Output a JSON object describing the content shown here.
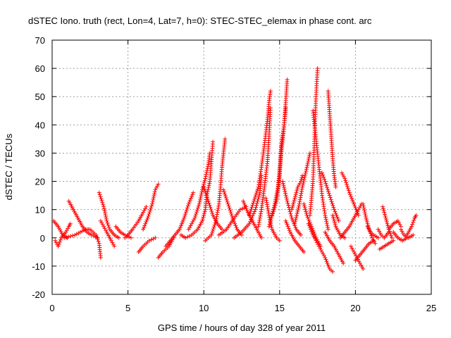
{
  "chart_data": {
    "type": "scatter",
    "title": "dSTEC Iono. truth (rect, Lon=4, Lat=7, h=0): STEC-STEC_elemax in phase cont. arc",
    "xlabel": "GPS time / hours of day 328 of year 2011",
    "ylabel": "dSTEC  / TECUs",
    "xlim": [
      0,
      25
    ],
    "ylim": [
      -20,
      70
    ],
    "xticks": [
      "0",
      "5",
      "10",
      "15",
      "20",
      "25"
    ],
    "yticks": [
      "-20",
      "-10",
      "0",
      "10",
      "20",
      "30",
      "40",
      "50",
      "60",
      "70"
    ],
    "grid": true,
    "marker": "plus",
    "color": "#ff0000",
    "arcs": [
      [
        [
          0.1,
          6
        ],
        [
          0.4,
          4
        ],
        [
          0.7,
          1
        ],
        [
          1.0,
          0
        ]
      ],
      [
        [
          0.2,
          -1
        ],
        [
          0.4,
          -3
        ],
        [
          0.6,
          0
        ],
        [
          0.9,
          2
        ],
        [
          1.1,
          4
        ],
        [
          1.2,
          5
        ]
      ],
      [
        [
          1.1,
          13
        ],
        [
          1.4,
          10
        ],
        [
          1.7,
          7
        ],
        [
          2.0,
          4
        ],
        [
          2.3,
          2
        ],
        [
          2.6,
          1
        ],
        [
          3.0,
          0
        ]
      ],
      [
        [
          0.8,
          0
        ],
        [
          1.5,
          1
        ],
        [
          2.2,
          3
        ],
        [
          2.5,
          3
        ],
        [
          2.9,
          1
        ],
        [
          3.1,
          -2
        ],
        [
          3.2,
          -7
        ]
      ],
      [
        [
          3.1,
          16
        ],
        [
          3.4,
          11
        ],
        [
          3.6,
          6
        ],
        [
          3.8,
          3
        ],
        [
          4.1,
          1
        ],
        [
          4.4,
          0
        ]
      ],
      [
        [
          3.2,
          6
        ],
        [
          3.6,
          2
        ],
        [
          3.9,
          -1
        ],
        [
          4.1,
          -3
        ]
      ],
      [
        [
          4.2,
          4
        ],
        [
          4.5,
          2
        ],
        [
          4.8,
          1
        ],
        [
          5.2,
          0
        ]
      ],
      [
        [
          4.8,
          0
        ],
        [
          5.0,
          1
        ],
        [
          5.3,
          3
        ],
        [
          5.7,
          6
        ],
        [
          6.0,
          9
        ],
        [
          6.2,
          11
        ]
      ],
      [
        [
          5.7,
          -5
        ],
        [
          6.0,
          -3
        ],
        [
          6.4,
          -1
        ],
        [
          6.8,
          0
        ]
      ],
      [
        [
          6.0,
          3
        ],
        [
          6.3,
          7
        ],
        [
          6.6,
          12
        ],
        [
          6.8,
          17
        ],
        [
          7.0,
          19
        ]
      ],
      [
        [
          7.0,
          -7
        ],
        [
          7.3,
          -5
        ],
        [
          7.7,
          -3
        ],
        [
          8.0,
          0
        ]
      ],
      [
        [
          7.5,
          -3
        ],
        [
          7.8,
          -1
        ],
        [
          8.1,
          1
        ],
        [
          8.4,
          3
        ],
        [
          8.7,
          7
        ],
        [
          9.0,
          12
        ],
        [
          9.3,
          16
        ]
      ],
      [
        [
          8.5,
          1
        ],
        [
          8.8,
          0
        ],
        [
          9.2,
          1
        ],
        [
          9.6,
          3
        ],
        [
          9.9,
          6
        ],
        [
          10.1,
          10
        ],
        [
          10.2,
          15
        ],
        [
          10.4,
          20
        ],
        [
          10.5,
          27
        ],
        [
          10.6,
          34
        ]
      ],
      [
        [
          9.0,
          3
        ],
        [
          9.4,
          7
        ],
        [
          9.7,
          12
        ],
        [
          9.9,
          17
        ],
        [
          10.1,
          21
        ],
        [
          10.3,
          26
        ],
        [
          10.4,
          30
        ]
      ],
      [
        [
          10.0,
          18
        ],
        [
          10.3,
          13
        ],
        [
          10.6,
          8
        ],
        [
          10.9,
          5
        ],
        [
          11.2,
          3
        ]
      ],
      [
        [
          10.1,
          -1
        ],
        [
          10.5,
          1
        ],
        [
          10.8,
          6
        ],
        [
          11.0,
          12
        ],
        [
          11.1,
          18
        ],
        [
          11.2,
          25
        ],
        [
          11.3,
          30
        ],
        [
          11.4,
          35
        ]
      ],
      [
        [
          11.3,
          17
        ],
        [
          11.6,
          12
        ],
        [
          11.9,
          7
        ],
        [
          12.2,
          3
        ],
        [
          12.5,
          1
        ]
      ],
      [
        [
          11.0,
          1
        ],
        [
          11.5,
          3
        ],
        [
          12.0,
          7
        ],
        [
          12.4,
          10
        ],
        [
          12.8,
          11
        ]
      ],
      [
        [
          12.0,
          0
        ],
        [
          12.5,
          2
        ],
        [
          13.0,
          5
        ],
        [
          13.4,
          10
        ],
        [
          13.7,
          16
        ],
        [
          13.8,
          22
        ]
      ],
      [
        [
          12.6,
          13
        ],
        [
          12.9,
          9
        ],
        [
          13.2,
          6
        ],
        [
          13.5,
          3
        ],
        [
          13.8,
          0
        ]
      ],
      [
        [
          13.0,
          8
        ],
        [
          13.3,
          13
        ],
        [
          13.6,
          18
        ],
        [
          13.8,
          25
        ],
        [
          14.0,
          33
        ],
        [
          14.2,
          42
        ],
        [
          14.3,
          48
        ],
        [
          14.4,
          52
        ]
      ],
      [
        [
          13.6,
          4
        ],
        [
          13.8,
          10
        ],
        [
          14.0,
          18
        ],
        [
          14.2,
          27
        ],
        [
          14.3,
          36
        ],
        [
          14.4,
          46
        ]
      ],
      [
        [
          14.1,
          14
        ],
        [
          14.3,
          8
        ],
        [
          14.5,
          3
        ],
        [
          14.8,
          0
        ],
        [
          15.0,
          -1
        ]
      ],
      [
        [
          14.5,
          8
        ],
        [
          14.8,
          13
        ],
        [
          15.0,
          22
        ],
        [
          15.1,
          32
        ],
        [
          15.3,
          40
        ],
        [
          15.4,
          48
        ],
        [
          15.5,
          56
        ]
      ],
      [
        [
          14.3,
          4
        ],
        [
          14.6,
          10
        ],
        [
          14.9,
          18
        ],
        [
          15.1,
          30
        ],
        [
          15.3,
          40
        ],
        [
          15.4,
          46
        ]
      ],
      [
        [
          15.2,
          20
        ],
        [
          15.5,
          13
        ],
        [
          15.8,
          7
        ],
        [
          16.1,
          3
        ],
        [
          16.4,
          1
        ]
      ],
      [
        [
          15.4,
          6
        ],
        [
          15.7,
          2
        ],
        [
          16.0,
          -1
        ],
        [
          16.3,
          -3
        ],
        [
          16.6,
          -5
        ]
      ],
      [
        [
          15.8,
          10
        ],
        [
          16.0,
          14
        ],
        [
          16.2,
          18
        ],
        [
          16.4,
          20
        ],
        [
          16.5,
          22
        ]
      ],
      [
        [
          16.0,
          5
        ],
        [
          16.3,
          12
        ],
        [
          16.5,
          18
        ],
        [
          16.8,
          25
        ],
        [
          17.0,
          30
        ]
      ],
      [
        [
          16.6,
          12
        ],
        [
          16.8,
          8
        ],
        [
          17.1,
          4
        ],
        [
          17.4,
          0
        ],
        [
          17.7,
          -3
        ]
      ],
      [
        [
          17.0,
          8
        ],
        [
          17.2,
          20
        ],
        [
          17.3,
          35
        ],
        [
          17.4,
          50
        ],
        [
          17.5,
          60
        ]
      ],
      [
        [
          17.2,
          45
        ],
        [
          17.4,
          35
        ],
        [
          17.6,
          25
        ],
        [
          17.8,
          15
        ],
        [
          18.0,
          8
        ],
        [
          18.2,
          3
        ]
      ],
      [
        [
          16.9,
          5
        ],
        [
          17.2,
          1
        ],
        [
          17.6,
          -3
        ],
        [
          18.0,
          -7
        ],
        [
          18.3,
          -11
        ],
        [
          18.5,
          -12
        ]
      ],
      [
        [
          17.8,
          23
        ],
        [
          18.0,
          20
        ],
        [
          18.3,
          15
        ],
        [
          18.6,
          10
        ],
        [
          18.9,
          6
        ]
      ],
      [
        [
          18.2,
          52
        ],
        [
          18.3,
          44
        ],
        [
          18.4,
          36
        ],
        [
          18.5,
          28
        ],
        [
          18.6,
          22
        ],
        [
          18.7,
          18
        ]
      ],
      [
        [
          18.0,
          2
        ],
        [
          18.3,
          -1
        ],
        [
          18.6,
          -3
        ],
        [
          18.9,
          -6
        ],
        [
          19.2,
          -9
        ]
      ],
      [
        [
          18.5,
          8
        ],
        [
          18.7,
          4
        ],
        [
          19.0,
          1
        ],
        [
          19.3,
          0
        ]
      ],
      [
        [
          19.1,
          23
        ],
        [
          19.3,
          21
        ],
        [
          19.6,
          16
        ],
        [
          19.9,
          12
        ],
        [
          20.2,
          8
        ]
      ],
      [
        [
          19.0,
          0
        ],
        [
          19.3,
          2
        ],
        [
          19.6,
          4
        ],
        [
          19.9,
          7
        ],
        [
          20.2,
          10
        ],
        [
          20.4,
          12
        ]
      ],
      [
        [
          19.7,
          -3
        ],
        [
          19.9,
          -5
        ],
        [
          20.1,
          -7
        ],
        [
          20.3,
          -9
        ],
        [
          20.5,
          -11
        ]
      ],
      [
        [
          20.5,
          12
        ],
        [
          20.7,
          7
        ],
        [
          20.9,
          3
        ],
        [
          21.1,
          0
        ],
        [
          21.3,
          -2
        ]
      ],
      [
        [
          20.0,
          -8
        ],
        [
          20.3,
          -6
        ],
        [
          20.6,
          -4
        ],
        [
          20.9,
          -2
        ],
        [
          21.2,
          -1
        ]
      ],
      [
        [
          20.8,
          4
        ],
        [
          21.0,
          2
        ],
        [
          21.2,
          1
        ],
        [
          21.5,
          0
        ]
      ],
      [
        [
          21.5,
          3
        ],
        [
          21.7,
          1
        ],
        [
          21.9,
          0
        ],
        [
          22.2,
          2
        ]
      ],
      [
        [
          21.8,
          11
        ],
        [
          22.0,
          7
        ],
        [
          22.2,
          3
        ],
        [
          22.4,
          0
        ]
      ],
      [
        [
          21.6,
          -4
        ],
        [
          21.9,
          -3
        ],
        [
          22.2,
          -2
        ],
        [
          22.5,
          -1
        ]
      ],
      [
        [
          22.2,
          3
        ],
        [
          22.5,
          5
        ],
        [
          22.8,
          6
        ],
        [
          23.0,
          4
        ]
      ],
      [
        [
          22.5,
          2
        ],
        [
          22.8,
          0
        ],
        [
          23.1,
          -1
        ],
        [
          23.4,
          0
        ]
      ],
      [
        [
          23.0,
          3
        ],
        [
          23.2,
          1
        ],
        [
          23.5,
          0
        ],
        [
          23.8,
          1
        ]
      ],
      [
        [
          23.4,
          1
        ],
        [
          23.7,
          4
        ],
        [
          23.9,
          7
        ],
        [
          24.0,
          8
        ]
      ]
    ]
  }
}
